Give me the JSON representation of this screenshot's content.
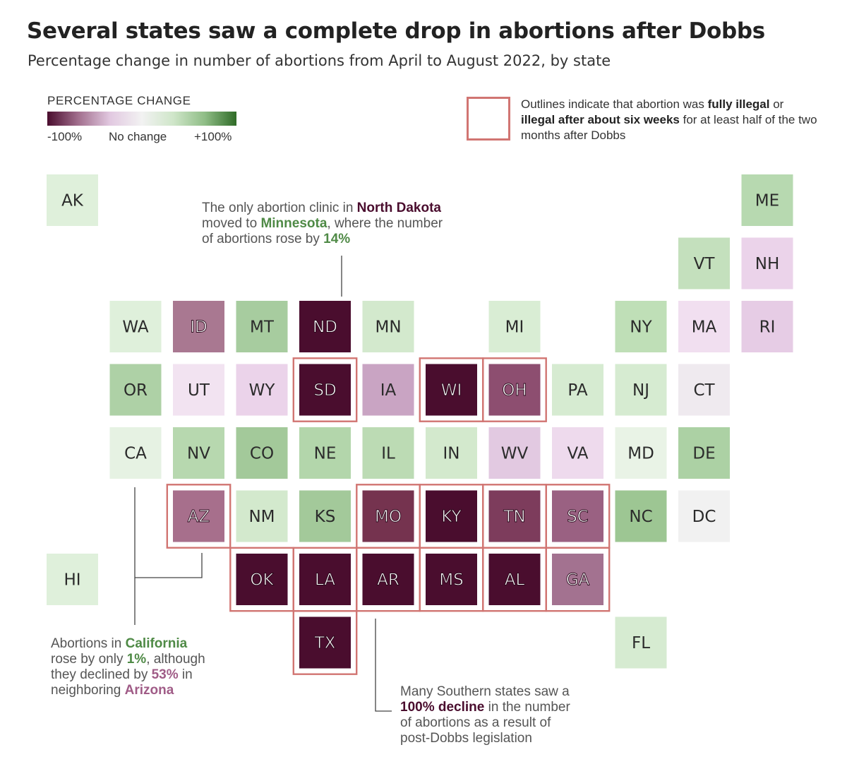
{
  "title": "Several states saw a complete drop in abortions after Dobbs",
  "subtitle": "Percentage change in number of abortions from April to August 2022, by state",
  "legend": {
    "title": "PERCENTAGE CHANGE",
    "min_label": "-100%",
    "mid_label": "No change",
    "max_label": "+100%",
    "colors": [
      "#4a0d2e",
      "#a3708f",
      "#e2c9e1",
      "#f2f2f2",
      "#cfe6c9",
      "#8fbd86",
      "#2f6b27"
    ]
  },
  "outline_note": {
    "t1": "Outlines indicate that abortion was ",
    "b1": "fully illegal",
    "t2": " or ",
    "b2": "illegal after about six weeks",
    "t3": " for at least half of the two months after Dobbs",
    "color": "#d17572"
  },
  "chart_data": {
    "type": "tile-map",
    "value_unit": "percent change",
    "states": [
      {
        "abbr": "AK",
        "col": 0,
        "row": 0,
        "color": "#dff0db",
        "outlined": false
      },
      {
        "abbr": "ME",
        "col": 11,
        "row": 0,
        "color": "#b7d9b0",
        "outlined": false
      },
      {
        "abbr": "VT",
        "col": 10,
        "row": 1,
        "color": "#c4e0bd",
        "outlined": false
      },
      {
        "abbr": "NH",
        "col": 11,
        "row": 1,
        "color": "#ebd3ea",
        "outlined": false
      },
      {
        "abbr": "WA",
        "col": 1,
        "row": 2,
        "color": "#dff0db",
        "outlined": false
      },
      {
        "abbr": "ID",
        "col": 2,
        "row": 2,
        "color": "#a97891",
        "outlined": false
      },
      {
        "abbr": "MT",
        "col": 3,
        "row": 2,
        "color": "#a7cc9f",
        "outlined": false
      },
      {
        "abbr": "ND",
        "col": 4,
        "row": 2,
        "color": "#4a0d2e",
        "outlined": false,
        "value": -100
      },
      {
        "abbr": "MN",
        "col": 5,
        "row": 2,
        "color": "#d3e9cd",
        "outlined": false,
        "value": 14
      },
      {
        "abbr": "MI",
        "col": 7,
        "row": 2,
        "color": "#d9edd4",
        "outlined": false
      },
      {
        "abbr": "NY",
        "col": 9,
        "row": 2,
        "color": "#bfdfb7",
        "outlined": false
      },
      {
        "abbr": "MA",
        "col": 10,
        "row": 2,
        "color": "#f1dff0",
        "outlined": false
      },
      {
        "abbr": "RI",
        "col": 11,
        "row": 2,
        "color": "#e6cce5",
        "outlined": false
      },
      {
        "abbr": "OR",
        "col": 1,
        "row": 3,
        "color": "#aed1a6",
        "outlined": false
      },
      {
        "abbr": "UT",
        "col": 2,
        "row": 3,
        "color": "#f2e3f1",
        "outlined": false
      },
      {
        "abbr": "WY",
        "col": 3,
        "row": 3,
        "color": "#ebd3ea",
        "outlined": false
      },
      {
        "abbr": "SD",
        "col": 4,
        "row": 3,
        "color": "#4a0d2e",
        "outlined": true
      },
      {
        "abbr": "IA",
        "col": 5,
        "row": 3,
        "color": "#c9a4c3",
        "outlined": false
      },
      {
        "abbr": "WI",
        "col": 6,
        "row": 3,
        "color": "#4a0d2e",
        "outlined": true
      },
      {
        "abbr": "OH",
        "col": 7,
        "row": 3,
        "color": "#8d4e70",
        "outlined": true
      },
      {
        "abbr": "PA",
        "col": 8,
        "row": 3,
        "color": "#d6ebd1",
        "outlined": false
      },
      {
        "abbr": "NJ",
        "col": 9,
        "row": 3,
        "color": "#d6ebd1",
        "outlined": false
      },
      {
        "abbr": "CT",
        "col": 10,
        "row": 3,
        "color": "#efeaef",
        "outlined": false
      },
      {
        "abbr": "CA",
        "col": 1,
        "row": 4,
        "color": "#e6f2e3",
        "outlined": false,
        "value": 1
      },
      {
        "abbr": "NV",
        "col": 2,
        "row": 4,
        "color": "#b7d8af",
        "outlined": false
      },
      {
        "abbr": "CO",
        "col": 3,
        "row": 4,
        "color": "#a3c99a",
        "outlined": false
      },
      {
        "abbr": "NE",
        "col": 4,
        "row": 4,
        "color": "#b3d6ab",
        "outlined": false
      },
      {
        "abbr": "IL",
        "col": 5,
        "row": 4,
        "color": "#bcdbb4",
        "outlined": false
      },
      {
        "abbr": "IN",
        "col": 6,
        "row": 4,
        "color": "#d3e9cd",
        "outlined": false
      },
      {
        "abbr": "WV",
        "col": 7,
        "row": 4,
        "color": "#e2c9e1",
        "outlined": false
      },
      {
        "abbr": "VA",
        "col": 8,
        "row": 4,
        "color": "#eedaed",
        "outlined": false
      },
      {
        "abbr": "MD",
        "col": 9,
        "row": 4,
        "color": "#e9f3e6",
        "outlined": false
      },
      {
        "abbr": "DE",
        "col": 10,
        "row": 4,
        "color": "#acd1a4",
        "outlined": false
      },
      {
        "abbr": "AZ",
        "col": 2,
        "row": 5,
        "color": "#a76f8c",
        "outlined": true,
        "value": -53
      },
      {
        "abbr": "NM",
        "col": 3,
        "row": 5,
        "color": "#d3e9cd",
        "outlined": false
      },
      {
        "abbr": "KS",
        "col": 4,
        "row": 5,
        "color": "#a3c99a",
        "outlined": false
      },
      {
        "abbr": "MO",
        "col": 5,
        "row": 5,
        "color": "#75334f",
        "outlined": true
      },
      {
        "abbr": "KY",
        "col": 6,
        "row": 5,
        "color": "#4a0d2e",
        "outlined": true
      },
      {
        "abbr": "TN",
        "col": 7,
        "row": 5,
        "color": "#7d3c5c",
        "outlined": true
      },
      {
        "abbr": "SC",
        "col": 8,
        "row": 5,
        "color": "#9a6182",
        "outlined": true
      },
      {
        "abbr": "NC",
        "col": 9,
        "row": 5,
        "color": "#9dc693",
        "outlined": false
      },
      {
        "abbr": "DC",
        "col": 10,
        "row": 5,
        "color": "#f1f1f1",
        "outlined": false
      },
      {
        "abbr": "HI",
        "col": 0,
        "row": 6,
        "color": "#dff0db",
        "outlined": false
      },
      {
        "abbr": "OK",
        "col": 3,
        "row": 6,
        "color": "#4a0d2e",
        "outlined": true
      },
      {
        "abbr": "LA",
        "col": 4,
        "row": 6,
        "color": "#4a0d2e",
        "outlined": true
      },
      {
        "abbr": "AR",
        "col": 5,
        "row": 6,
        "color": "#4a0d2e",
        "outlined": true
      },
      {
        "abbr": "MS",
        "col": 6,
        "row": 6,
        "color": "#4a0d2e",
        "outlined": true
      },
      {
        "abbr": "AL",
        "col": 7,
        "row": 6,
        "color": "#4a0d2e",
        "outlined": true
      },
      {
        "abbr": "GA",
        "col": 8,
        "row": 6,
        "color": "#a37290",
        "outlined": true
      },
      {
        "abbr": "TX",
        "col": 4,
        "row": 7,
        "color": "#4a0d2e",
        "outlined": true
      },
      {
        "abbr": "FL",
        "col": 9,
        "row": 7,
        "color": "#d6ebd1",
        "outlined": false
      }
    ]
  },
  "annotations": {
    "nd": {
      "t1": "The only abortion clinic in ",
      "b1": "North Dakota",
      "t2": "moved to ",
      "b2": "Minnesota",
      "t3": ", where the number",
      "t4": "of abortions rose by ",
      "b3": "14%",
      "purple": "#4a0d2e",
      "green": "#4f8a46"
    },
    "ca": {
      "t1": "Abortions in ",
      "b1": "California",
      "t2": "rose by only ",
      "b2": "1%",
      "t3": ", although",
      "t4": "they declined by ",
      "b3": "53%",
      "t5": " in",
      "t6": "neighboring ",
      "b4": "Arizona",
      "purple": "#a05c87",
      "green": "#4f8a46"
    },
    "south": {
      "t1": "Many Southern states saw a",
      "b1": "100% decline",
      "t2": " in the number",
      "t3": "of abortions as a result of",
      "t4": "post-Dobbs legislation",
      "purple": "#4a0d2e"
    }
  }
}
